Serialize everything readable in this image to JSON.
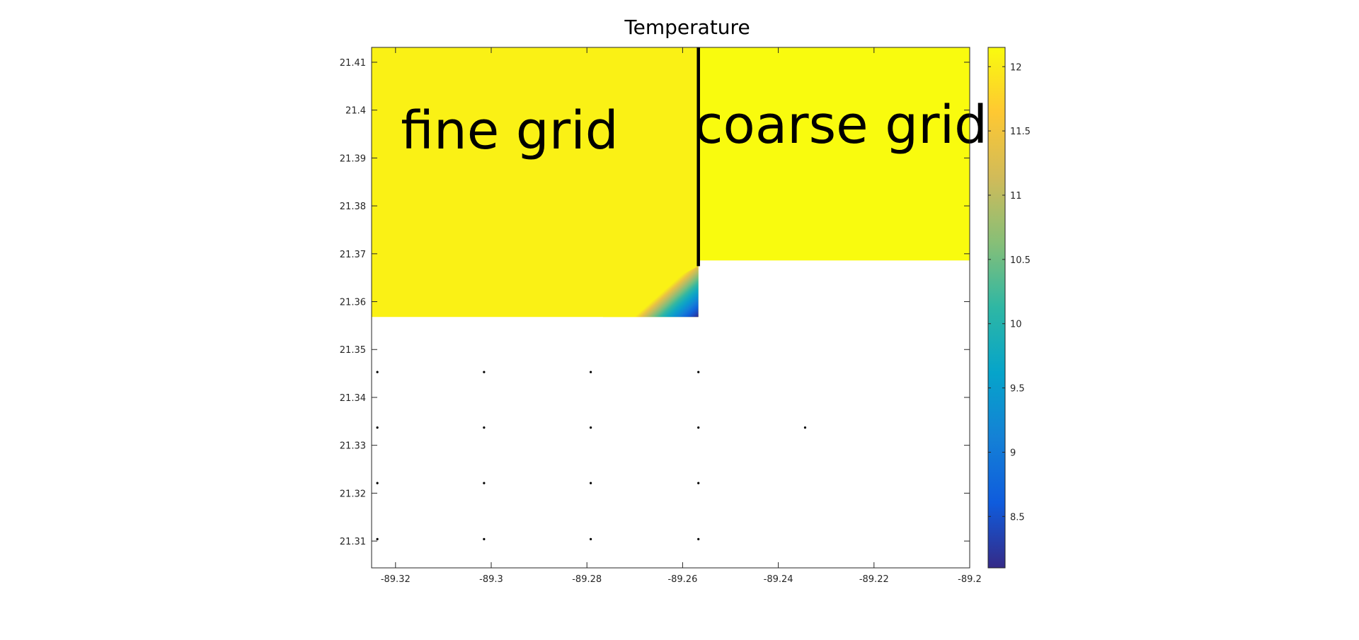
{
  "chart_data": {
    "type": "pcolor",
    "title": "Temperature",
    "xlim": [
      -89.325,
      -89.2
    ],
    "ylim": [
      21.3044,
      21.4131
    ],
    "xticks": [
      -89.32,
      -89.3,
      -89.28,
      -89.26,
      -89.24,
      -89.22,
      -89.2
    ],
    "yticks": [
      21.31,
      21.32,
      21.33,
      21.34,
      21.35,
      21.36,
      21.37,
      21.38,
      21.39,
      21.4,
      21.41
    ],
    "clim": [
      8.1,
      12.15
    ],
    "cticks": [
      8.5,
      9,
      9.5,
      10,
      10.5,
      11,
      11.5,
      12
    ],
    "colormap": [
      "#352a87",
      "#0f5cdd",
      "#1481d6",
      "#06a4ca",
      "#2eb7a4",
      "#87bf77",
      "#d1bb59",
      "#fec832",
      "#f9fb0e"
    ],
    "regions": [
      {
        "x": [
          -89.325,
          -89.2567
        ],
        "y": [
          21.3568,
          21.4131
        ],
        "value": 12.05,
        "corner_value": 8.1
      },
      {
        "x": [
          -89.2567,
          -89.2
        ],
        "y": [
          21.3686,
          21.4131
        ],
        "value": 12.15
      }
    ],
    "divider": {
      "x": -89.2567,
      "y": [
        21.3674,
        21.4131
      ]
    },
    "annotations": [
      "fine grid",
      "coarse grid"
    ],
    "series": [
      {
        "color": "#000000",
        "x": [
          -89.3238,
          -89.3015,
          -89.2792,
          -89.2567,
          -89.3238,
          -89.3015,
          -89.2792,
          -89.2567,
          -89.2344,
          -89.3238,
          -89.3015,
          -89.2792,
          -89.2567,
          -89.3238,
          -89.3015,
          -89.2792,
          -89.2567
        ],
        "y": [
          21.3453,
          21.3453,
          21.3453,
          21.3453,
          21.3337,
          21.3337,
          21.3337,
          21.3337,
          21.3337,
          21.3221,
          21.3221,
          21.3221,
          21.3221,
          21.3104,
          21.3104,
          21.3104,
          21.3104
        ]
      }
    ]
  }
}
